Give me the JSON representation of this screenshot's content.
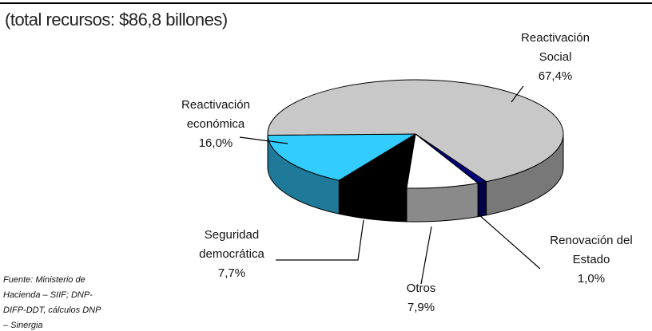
{
  "chart_data": {
    "type": "pie",
    "title": "(total recursos: $86,8 billones)",
    "note": "Fuente: Ministerio de Hacienda – SIIF; DNP-DIFP-DDT, cálculos DNP – Sinergia",
    "categories": [
      "Otros",
      "Seguridad democrática",
      "Reactivación económica",
      "Reactivación Social",
      "Renovación del Estado"
    ],
    "values": [
      7.9,
      7.7,
      16.0,
      67.4,
      1.0
    ],
    "value_labels": [
      "7,9%",
      "7,7%",
      "16,0%",
      "67,4%",
      "1,0%"
    ],
    "colors": [
      "#ffffff",
      "#000000",
      "#33ccff",
      "#c8c8c8",
      "#00007a"
    ]
  }
}
